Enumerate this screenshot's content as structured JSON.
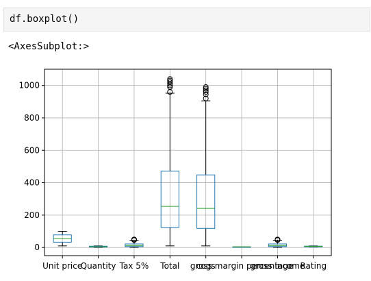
{
  "cell": {
    "input_code": "df.boxplot()",
    "output_text": "<AxesSubplot:>"
  },
  "chart_data": {
    "type": "boxplot",
    "title": "",
    "xlabel": "",
    "ylabel": "",
    "ylim": [
      -50,
      1100
    ],
    "yticks": [
      0,
      200,
      400,
      600,
      800,
      1000
    ],
    "grid": true,
    "colors": {
      "box": "#1f77b4",
      "median": "#2ca02c",
      "whisker": "#000000",
      "grid": "#b0b0b0"
    },
    "series": [
      {
        "name": "Unit price",
        "min": 10,
        "q1": 33,
        "median": 55,
        "q3": 78,
        "max": 100,
        "fliers": []
      },
      {
        "name": "Quantity",
        "min": 1,
        "q1": 3,
        "median": 5,
        "q3": 8,
        "max": 10,
        "fliers": []
      },
      {
        "name": "Tax 5%",
        "min": 1,
        "q1": 6,
        "median": 12,
        "q3": 22,
        "max": 45,
        "fliers": [
          46,
          47,
          48,
          49,
          50
        ]
      },
      {
        "name": "Total",
        "min": 10,
        "q1": 124,
        "median": 254,
        "q3": 471,
        "max": 952,
        "fliers": [
          960,
          990,
          1000,
          1010,
          1020,
          1030,
          1040
        ]
      },
      {
        "name": "cogs",
        "min": 10,
        "q1": 118,
        "median": 241,
        "q3": 448,
        "max": 905,
        "fliers": [
          920,
          945,
          960,
          970,
          980,
          990
        ]
      },
      {
        "name": "gross margin percentage",
        "min": 4.76,
        "q1": 4.76,
        "median": 4.76,
        "q3": 4.76,
        "max": 4.76,
        "fliers": []
      },
      {
        "name": "gross income",
        "min": 1,
        "q1": 6,
        "median": 12,
        "q3": 22,
        "max": 45,
        "fliers": [
          46,
          47,
          48,
          49,
          50
        ]
      },
      {
        "name": "Rating",
        "min": 4,
        "q1": 5.5,
        "median": 7,
        "q3": 8.5,
        "max": 10,
        "fliers": []
      }
    ]
  }
}
